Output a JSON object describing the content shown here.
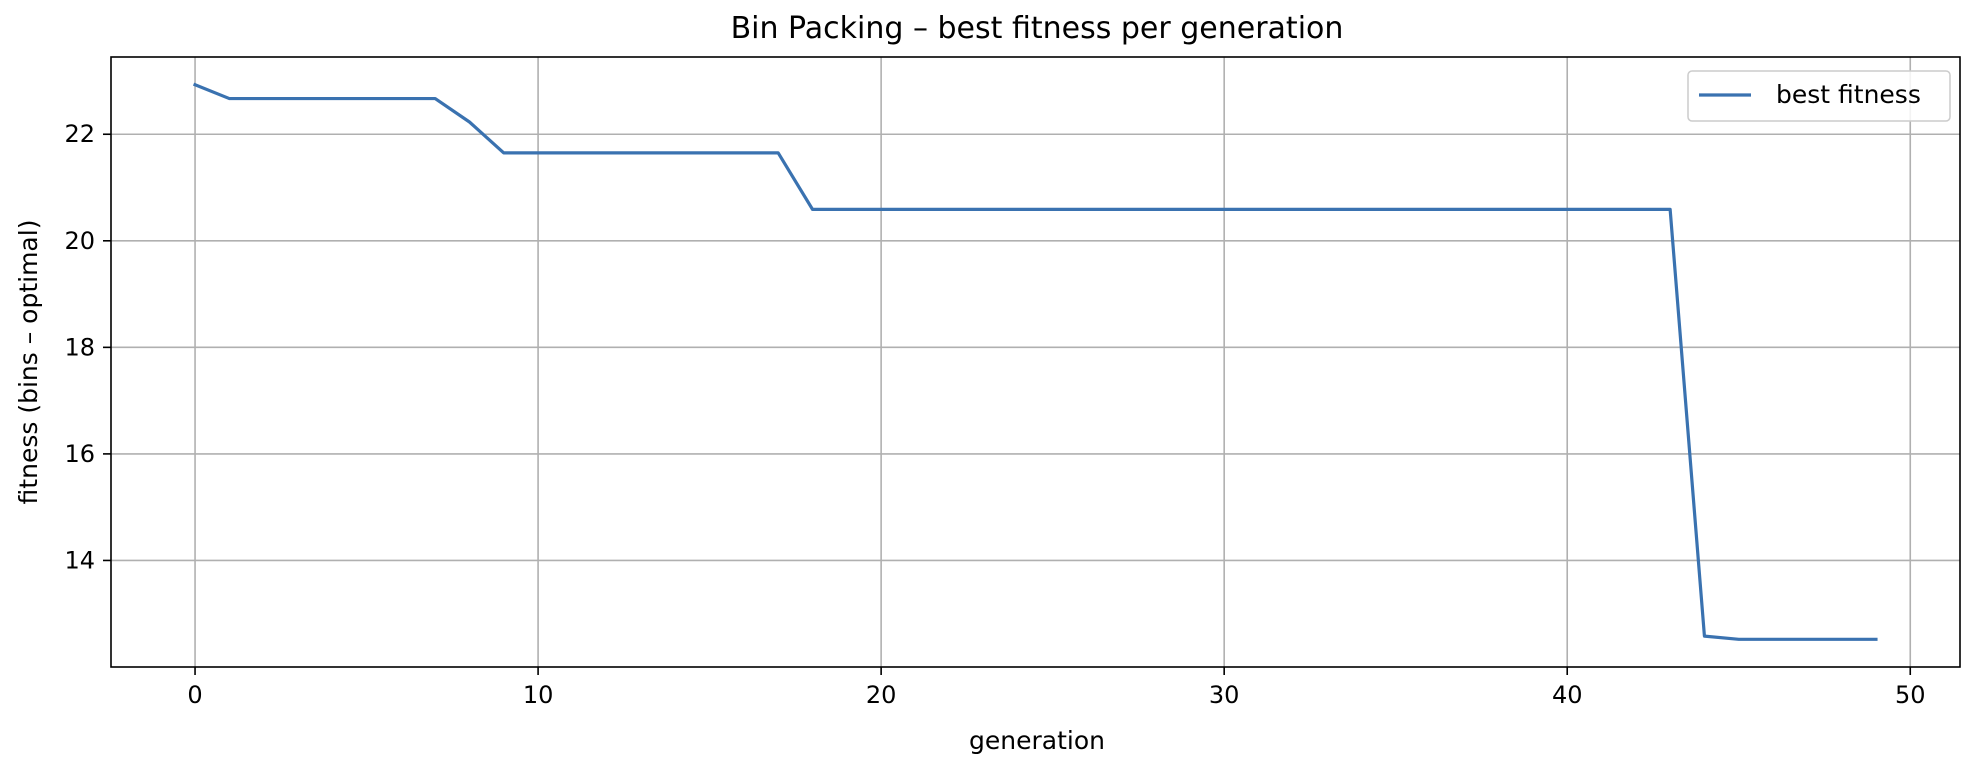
{
  "chart_data": {
    "type": "line",
    "title": "Bin Packing – best fitness per generation",
    "xlabel": "generation",
    "ylabel": "fitness (bins – optimal)",
    "xlim": [
      -2.45,
      51.45
    ],
    "ylim": [
      12.0,
      23.45
    ],
    "x_ticks": [
      0,
      10,
      20,
      30,
      40,
      50
    ],
    "y_ticks": [
      14,
      16,
      18,
      20,
      22
    ],
    "grid": true,
    "legend_position": "top-right",
    "colors": {
      "line": "#3a72b0",
      "grid": "#b0b0b0",
      "axes": "#000000"
    },
    "series": [
      {
        "name": "best fitness",
        "x": [
          0,
          1,
          2,
          3,
          4,
          5,
          6,
          7,
          8,
          9,
          10,
          11,
          12,
          13,
          14,
          15,
          16,
          17,
          18,
          19,
          20,
          21,
          22,
          23,
          24,
          25,
          26,
          27,
          28,
          29,
          30,
          31,
          32,
          33,
          34,
          35,
          36,
          37,
          38,
          39,
          40,
          41,
          42,
          43,
          44,
          45,
          46,
          47,
          48,
          49
        ],
        "y": [
          22.93,
          22.67,
          22.67,
          22.67,
          22.67,
          22.67,
          22.67,
          22.67,
          22.23,
          21.65,
          21.65,
          21.65,
          21.65,
          21.65,
          21.65,
          21.65,
          21.65,
          21.65,
          20.59,
          20.59,
          20.59,
          20.59,
          20.59,
          20.59,
          20.59,
          20.59,
          20.59,
          20.59,
          20.59,
          20.59,
          20.59,
          20.59,
          20.59,
          20.59,
          20.59,
          20.59,
          20.59,
          20.59,
          20.59,
          20.59,
          20.59,
          20.59,
          20.59,
          20.59,
          12.58,
          12.52,
          12.52,
          12.52,
          12.52,
          12.52
        ]
      }
    ]
  }
}
